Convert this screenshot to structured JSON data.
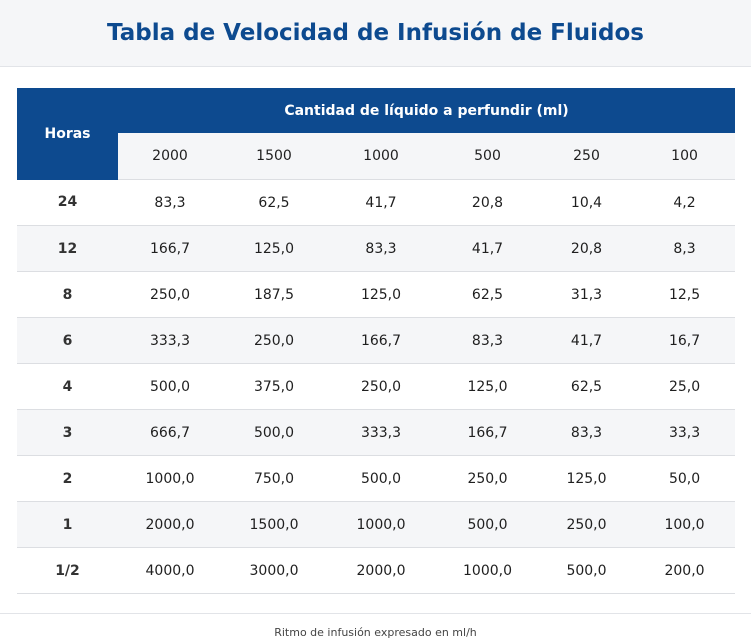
{
  "title": "Tabla de Velocidad de Infusión de Fluidos",
  "table": {
    "hours_header": "Horas",
    "group_header": "Cantidad de líquido a perfundir (ml)",
    "volumes": [
      "2000",
      "1500",
      "1000",
      "500",
      "250",
      "100"
    ],
    "rows": [
      {
        "hours": "24",
        "values": [
          "83,3",
          "62,5",
          "41,7",
          "20,8",
          "10,4",
          "4,2"
        ]
      },
      {
        "hours": "12",
        "values": [
          "166,7",
          "125,0",
          "83,3",
          "41,7",
          "20,8",
          "8,3"
        ]
      },
      {
        "hours": "8",
        "values": [
          "250,0",
          "187,5",
          "125,0",
          "62,5",
          "31,3",
          "12,5"
        ]
      },
      {
        "hours": "6",
        "values": [
          "333,3",
          "250,0",
          "166,7",
          "83,3",
          "41,7",
          "16,7"
        ]
      },
      {
        "hours": "4",
        "values": [
          "500,0",
          "375,0",
          "250,0",
          "125,0",
          "62,5",
          "25,0"
        ]
      },
      {
        "hours": "3",
        "values": [
          "666,7",
          "500,0",
          "333,3",
          "166,7",
          "83,3",
          "33,3"
        ]
      },
      {
        "hours": "2",
        "values": [
          "1000,0",
          "750,0",
          "500,0",
          "250,0",
          "125,0",
          "50,0"
        ]
      },
      {
        "hours": "1",
        "values": [
          "2000,0",
          "1500,0",
          "1000,0",
          "500,0",
          "250,0",
          "100,0"
        ]
      },
      {
        "hours": "1/2",
        "values": [
          "4000,0",
          "3000,0",
          "2000,0",
          "1000,0",
          "500,0",
          "200,0"
        ]
      }
    ]
  },
  "footer_note": "Ritmo de infusión expresado en ml/h",
  "colors": {
    "header_blue": "#0d4a8f",
    "stripe": "#f5f6f8"
  }
}
